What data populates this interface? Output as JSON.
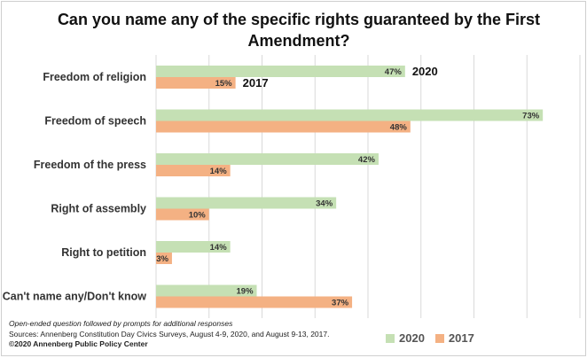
{
  "chart_data": {
    "type": "bar",
    "orientation": "horizontal",
    "title": "Can you name any of the specific rights guaranteed by the First Amendment?",
    "categories": [
      "Freedom of religion",
      "Freedom of speech",
      "Freedom of the press",
      "Right of assembly",
      "Right to petition",
      "Can't name any/Don't know"
    ],
    "series": [
      {
        "name": "2020",
        "color": "#c5e0b4",
        "values": [
          47,
          73,
          42,
          34,
          14,
          19
        ]
      },
      {
        "name": "2017",
        "color": "#f4b183",
        "values": [
          15,
          48,
          14,
          10,
          3,
          37
        ]
      }
    ],
    "value_suffix": "%",
    "xlim": [
      0,
      80
    ],
    "grid": true,
    "legend": "bottom-right",
    "inline_series_labels": [
      "2020",
      "2017"
    ]
  },
  "footnote": {
    "line1": "Open-ended question followed by prompts for additional responses",
    "line2": "Sources: Annenberg Constitution Day Civics Surveys, August 4-9, 2020, and August 9-13, 2017.",
    "line3": "©2020 Annenberg Public Policy Center"
  }
}
